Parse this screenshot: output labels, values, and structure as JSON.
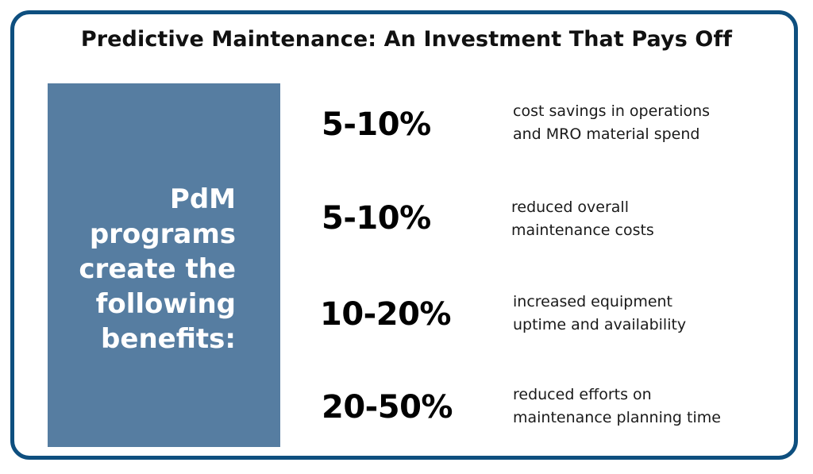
{
  "title": "Predictive Maintenance: An Investment That Pays Off",
  "panel": {
    "text": "PdM\nprograms\ncreate the\nfollowing\nbenefits:",
    "color": "#567da1"
  },
  "border_color": "#0e4f7f",
  "benefits": [
    {
      "value": "5-10%",
      "description": "cost savings in operations\nand MRO material spend"
    },
    {
      "value": "5-10%",
      "description": "reduced overall\nmaintenance costs"
    },
    {
      "value": "10-20%",
      "description": "increased equipment\nuptime and availability"
    },
    {
      "value": "20-50%",
      "description": "reduced efforts on\nmaintenance planning time"
    }
  ]
}
